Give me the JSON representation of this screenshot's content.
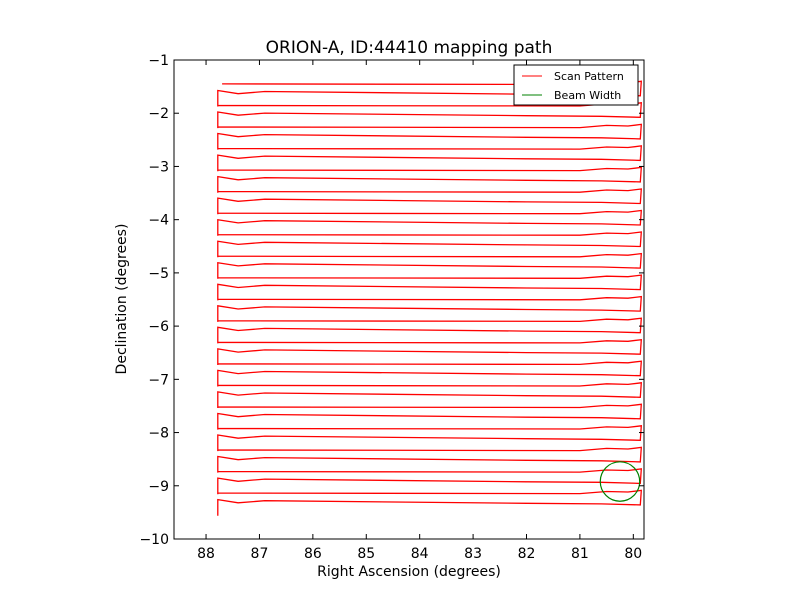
{
  "chart_data": {
    "type": "line",
    "title": "ORION-A, ID:44410 mapping path",
    "xlabel": "Right Ascension (degrees)",
    "ylabel": "Declination (degrees)",
    "xlim": [
      88.6,
      79.8
    ],
    "ylim": [
      -10,
      -1
    ],
    "xticks": [
      88,
      87,
      86,
      85,
      84,
      83,
      82,
      81,
      80
    ],
    "xtick_labels": [
      "88",
      "87",
      "86",
      "85",
      "84",
      "83",
      "82",
      "81",
      "80"
    ],
    "yticks": [
      -1,
      -2,
      -3,
      -4,
      -5,
      -6,
      -7,
      -8,
      -9,
      -10
    ],
    "ytick_labels": [
      "−1",
      "−2",
      "−3",
      "−4",
      "−5",
      "−6",
      "−7",
      "−8",
      "−9",
      "−10"
    ],
    "grid": false,
    "legend": {
      "location": "top-right",
      "entries": [
        {
          "label": "Scan Pattern",
          "color": "#ff0000"
        },
        {
          "label": "Beam Width",
          "color": "#008000"
        }
      ]
    },
    "series": [
      {
        "name": "Scan Pattern",
        "kind": "raster-scan",
        "color": "#ff0000",
        "ra_start": 87.7,
        "ra_end": 79.85,
        "dec_start": -1.45,
        "dec_end": -9.34,
        "num_rows": 40
      },
      {
        "name": "Beam Width",
        "kind": "circle",
        "color": "#008000",
        "center_ra": 80.25,
        "center_dec": -8.92,
        "radius_deg": 0.37
      }
    ]
  }
}
